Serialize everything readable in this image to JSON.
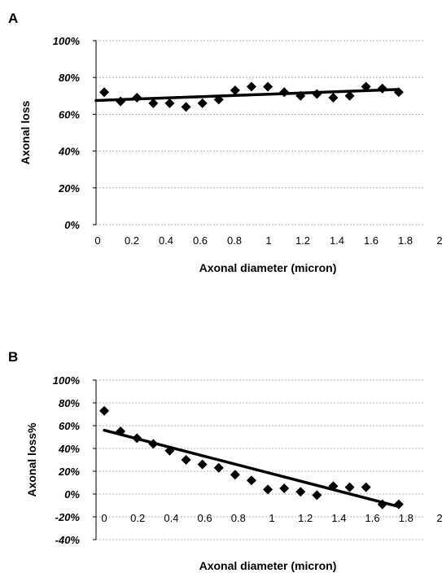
{
  "chart_data": [
    {
      "panel": "A",
      "type": "scatter",
      "xlabel": "Axonal diameter (micron)",
      "ylabel": "Axonal loss",
      "xlim": [
        0,
        2
      ],
      "ylim": [
        0,
        100
      ],
      "x_ticks": [
        "0",
        "0.2",
        "0.4",
        "0.6",
        "0.8",
        "1",
        "1.2",
        "1.4",
        "1.6",
        "1.8",
        "2"
      ],
      "y_ticks": [
        "0%",
        "20%",
        "40%",
        "60%",
        "80%",
        "100%"
      ],
      "grid": "horizontal",
      "points": [
        {
          "x": 0.05,
          "y": 72
        },
        {
          "x": 0.15,
          "y": 67
        },
        {
          "x": 0.25,
          "y": 69
        },
        {
          "x": 0.35,
          "y": 66
        },
        {
          "x": 0.45,
          "y": 66
        },
        {
          "x": 0.55,
          "y": 64
        },
        {
          "x": 0.65,
          "y": 66
        },
        {
          "x": 0.75,
          "y": 68
        },
        {
          "x": 0.85,
          "y": 73
        },
        {
          "x": 0.95,
          "y": 75
        },
        {
          "x": 1.05,
          "y": 75
        },
        {
          "x": 1.15,
          "y": 72
        },
        {
          "x": 1.25,
          "y": 70
        },
        {
          "x": 1.35,
          "y": 71
        },
        {
          "x": 1.45,
          "y": 69
        },
        {
          "x": 1.55,
          "y": 70
        },
        {
          "x": 1.65,
          "y": 75
        },
        {
          "x": 1.75,
          "y": 74
        },
        {
          "x": 1.85,
          "y": 72
        }
      ],
      "trendline": {
        "x": [
          0.0,
          1.85
        ],
        "y": [
          67.5,
          73.5
        ]
      }
    },
    {
      "panel": "B",
      "type": "scatter",
      "xlabel": "Axonal diameter (micron)",
      "ylabel": "Axonal loss%",
      "xlim": [
        0,
        2
      ],
      "ylim": [
        -40,
        100
      ],
      "x_ticks": [
        "0",
        "0.2",
        "0.4",
        "0.6",
        "0.8",
        "1",
        "1.2",
        "1.4",
        "1.6",
        "1.8",
        "2"
      ],
      "y_ticks": [
        "-40%",
        "-20%",
        "0%",
        "20%",
        "40%",
        "60%",
        "80%",
        "100%"
      ],
      "grid": "horizontal",
      "points": [
        {
          "x": 0.05,
          "y": 73
        },
        {
          "x": 0.15,
          "y": 55
        },
        {
          "x": 0.25,
          "y": 49
        },
        {
          "x": 0.35,
          "y": 44
        },
        {
          "x": 0.45,
          "y": 38
        },
        {
          "x": 0.55,
          "y": 30
        },
        {
          "x": 0.65,
          "y": 26
        },
        {
          "x": 0.75,
          "y": 23
        },
        {
          "x": 0.85,
          "y": 17
        },
        {
          "x": 0.95,
          "y": 12
        },
        {
          "x": 1.05,
          "y": 4
        },
        {
          "x": 1.15,
          "y": 5
        },
        {
          "x": 1.25,
          "y": 2
        },
        {
          "x": 1.35,
          "y": -1
        },
        {
          "x": 1.45,
          "y": 7
        },
        {
          "x": 1.55,
          "y": 6
        },
        {
          "x": 1.65,
          "y": 6
        },
        {
          "x": 1.75,
          "y": -9
        },
        {
          "x": 1.85,
          "y": -9
        }
      ],
      "trendline": {
        "x": [
          0.05,
          1.85
        ],
        "y": [
          56,
          -11
        ]
      }
    }
  ]
}
